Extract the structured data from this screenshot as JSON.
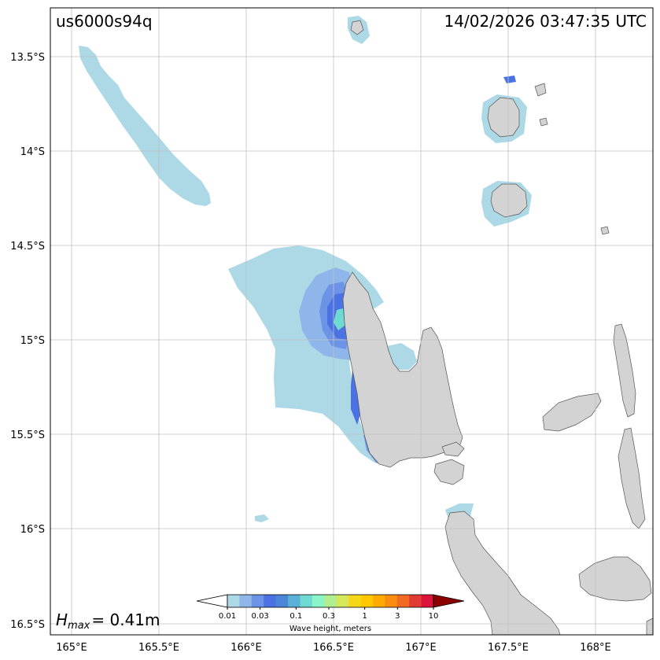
{
  "event_id": "us6000s94q",
  "timestamp": "14/02/2026 03:47:35 UTC",
  "hmax": {
    "prefix": "H",
    "subscript": "max",
    "value": "= 0.41m"
  },
  "map": {
    "lon_ticks": [
      "165°E",
      "165.5°E",
      "166°E",
      "166.5°E",
      "167°E",
      "167.5°E",
      "168°E"
    ],
    "lat_ticks": [
      "13.5°S",
      "14°S",
      "14.5°S",
      "15°S",
      "15.5°S",
      "16°S",
      "16.5°S"
    ],
    "land_color": "#d3d3d3",
    "coast_color": "#555555",
    "grid_color": "#c0c0c0"
  },
  "colorbar": {
    "title": "Wave height, meters",
    "tick_labels": [
      "0.01",
      "0.03",
      "0.1",
      "0.3",
      "1",
      "3",
      "10"
    ],
    "colors": [
      "#add8e6",
      "#8fb6ea",
      "#6c93e6",
      "#4a72e3",
      "#4b86d8",
      "#5ab0d6",
      "#6fdad2",
      "#8af5c6",
      "#b0ee90",
      "#d6e85a",
      "#f4d818",
      "#ffc800",
      "#ffaa00",
      "#fb8c12",
      "#f26a22",
      "#e43a35",
      "#dc143c"
    ],
    "under_color": "#ffffff",
    "over_color": "#8b0000"
  }
}
